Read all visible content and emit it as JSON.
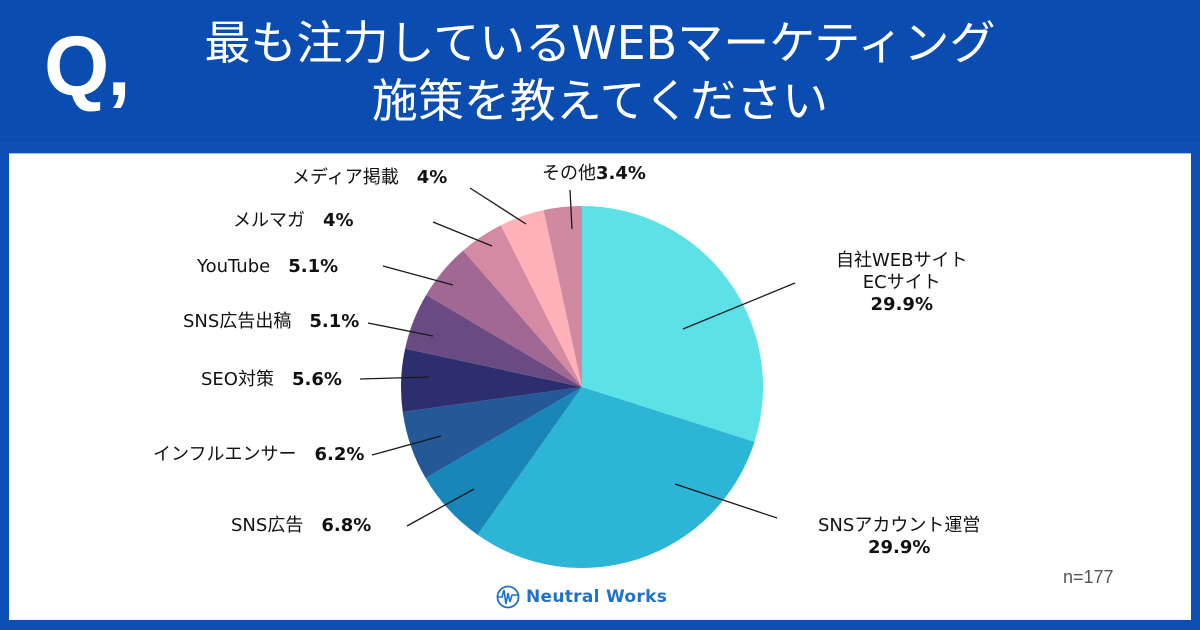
{
  "header": {
    "q_mark": "Q,",
    "title_line1": "最も注力しているWEBマーケティング",
    "title_line2": "施策を教えてください"
  },
  "footer": {
    "sample_size": "n=177",
    "brand": "Neutral Works"
  },
  "colors": {
    "header_bg": "#0b4cb1",
    "frame_bg": "#0d4fb3",
    "panel_bg": "#ffffff"
  },
  "labels": {
    "own_site_line1": "自社WEBサイト",
    "own_site_line2": "ECサイト",
    "own_site_pct": "29.9%",
    "sns_account": "SNSアカウント運営",
    "sns_account_pct": "29.9%",
    "sns_ad": "SNS広告",
    "sns_ad_pct": "6.8%",
    "influencer": "インフルエンサー",
    "influencer_pct": "6.2%",
    "seo": "SEO対策",
    "seo_pct": "5.6%",
    "sns_ad_post": "SNS広告出稿",
    "sns_ad_post_pct": "5.1%",
    "youtube": "YouTube",
    "youtube_pct": "5.1%",
    "mail_magazine": "メルマガ",
    "mail_magazine_pct": "4%",
    "media": "メディア掲載",
    "media_pct": "4%",
    "other": "その他",
    "other_pct": "3.4%"
  },
  "chart_data": {
    "type": "pie",
    "title": "最も注力しているWEBマーケティング施策を教えてください",
    "categories": [
      "自社WEBサイト ECサイト",
      "SNSアカウント運営",
      "SNS広告",
      "インフルエンサー",
      "SEO対策",
      "SNS広告出稿",
      "YouTube",
      "メルマガ",
      "メディア掲載",
      "その他"
    ],
    "values": [
      29.9,
      29.9,
      6.8,
      6.2,
      5.6,
      5.1,
      5.1,
      4,
      4,
      3.4
    ],
    "unit": "%",
    "colors": [
      "#5ce1e6",
      "#2cb5d5",
      "#1886b8",
      "#245897",
      "#2d2e6e",
      "#6a4a83",
      "#a06893",
      "#d48aa3",
      "#feb1b6",
      "#cf89a1"
    ],
    "start_angle_deg": 0,
    "direction": "clockwise",
    "n": 177,
    "legend": "none (leader-line labels)"
  }
}
